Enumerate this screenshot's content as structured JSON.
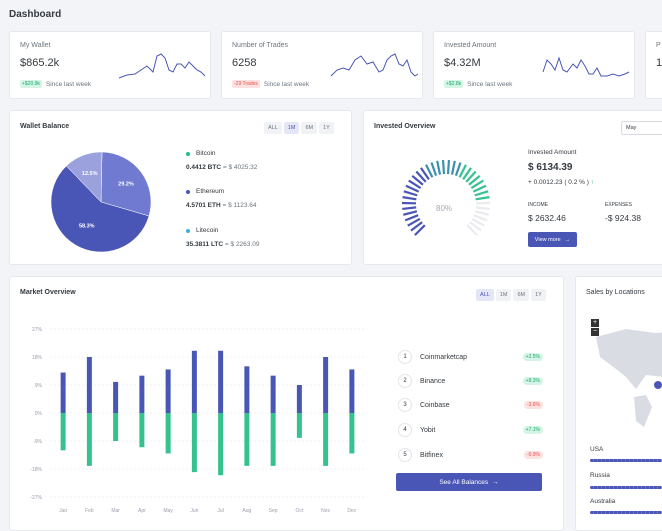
{
  "header": {
    "title": "Dashboard"
  },
  "stats": [
    {
      "title": "My Wallet",
      "value": "$865.2k",
      "badge": "+$20.9k",
      "badge_type": "green",
      "since": "Since last week"
    },
    {
      "title": "Number of Trades",
      "value": "6258",
      "badge": "-29 Trades",
      "badge_type": "red",
      "since": "Since last week"
    },
    {
      "title": "Invested Amount",
      "value": "$4.32M",
      "badge": "+$2.8k",
      "badge_type": "green",
      "since": "Since last week"
    },
    {
      "title": "P",
      "value": "1"
    }
  ],
  "wallet": {
    "title": "Wallet Balance",
    "tabs": [
      "ALL",
      "1M",
      "6M",
      "1Y"
    ],
    "active_tab": "1M",
    "coins": [
      {
        "name": "Bitcoin",
        "amount": "0.4412 BTC",
        "usd": "= $ 4025.32",
        "color": "#1fbf86"
      },
      {
        "name": "Ethereum",
        "amount": "4.5701 ETH",
        "usd": "= $ 1123.64",
        "color": "#4a56b5"
      },
      {
        "name": "Litecoin",
        "amount": "35.3811 LTC",
        "usd": "= $ 2263.09",
        "color": "#3ab5d6"
      }
    ]
  },
  "invested": {
    "title": "Invested Overview",
    "select_value": "May",
    "gauge_label": "80%",
    "amount_label": "Invested Amount",
    "amount": "$ 6134.39",
    "change": "+ 0.0012.23 ( 0.2 % )",
    "income_label": "INCOME",
    "income": "$ 2632.46",
    "expenses_label": "EXPENSES",
    "expenses": "-$ 924.38",
    "view_more": "View more"
  },
  "market": {
    "title": "Market Overview",
    "tabs": [
      "ALL",
      "1M",
      "6M",
      "1Y"
    ],
    "active_tab": "ALL",
    "ranks": [
      {
        "num": "1",
        "name": "Coinmarketcap",
        "pct": "+2.5%",
        "type": "green"
      },
      {
        "num": "2",
        "name": "Binance",
        "pct": "+8.3%",
        "type": "green"
      },
      {
        "num": "3",
        "name": "Coinbase",
        "pct": "-3.6%",
        "type": "red"
      },
      {
        "num": "4",
        "name": "Yobit",
        "pct": "+7.1%",
        "type": "green"
      },
      {
        "num": "5",
        "name": "Bitfinex",
        "pct": "-0.9%",
        "type": "red"
      }
    ],
    "button": "See All Balances"
  },
  "locations": {
    "title": "Sales by Locations",
    "countries": [
      "USA",
      "Russia",
      "Australia"
    ]
  },
  "chart_data": [
    {
      "type": "pie",
      "categories": [
        "Bitcoin",
        "Ethereum",
        "Litecoin"
      ],
      "values": [
        29.2,
        58.3,
        12.5
      ],
      "labels": [
        "29.2%",
        "58.3%",
        "12.5%"
      ],
      "colors": [
        "#6f7ad0",
        "#4a56b5",
        "#9aa1dd"
      ]
    },
    {
      "type": "bar",
      "categories": [
        "Jan",
        "Feb",
        "Mar",
        "Apr",
        "May",
        "Jun",
        "Jul",
        "Aug",
        "Sep",
        "Oct",
        "Nov",
        "Dec"
      ],
      "series": [
        {
          "values": [
            13,
            18,
            10,
            12,
            14,
            20,
            20,
            15,
            12,
            9,
            18,
            14
          ],
          "color": "#4a56b5"
        },
        {
          "values": [
            -12,
            -17,
            -9,
            -11,
            -13,
            -19,
            -20,
            -17,
            -17,
            -8,
            -17,
            -13
          ],
          "color": "#34c38f"
        }
      ],
      "yticks": [
        "27%",
        "18%",
        "9%",
        "0%",
        "-9%",
        "-18%",
        "-27%"
      ],
      "ylim": [
        -27,
        27
      ]
    }
  ]
}
